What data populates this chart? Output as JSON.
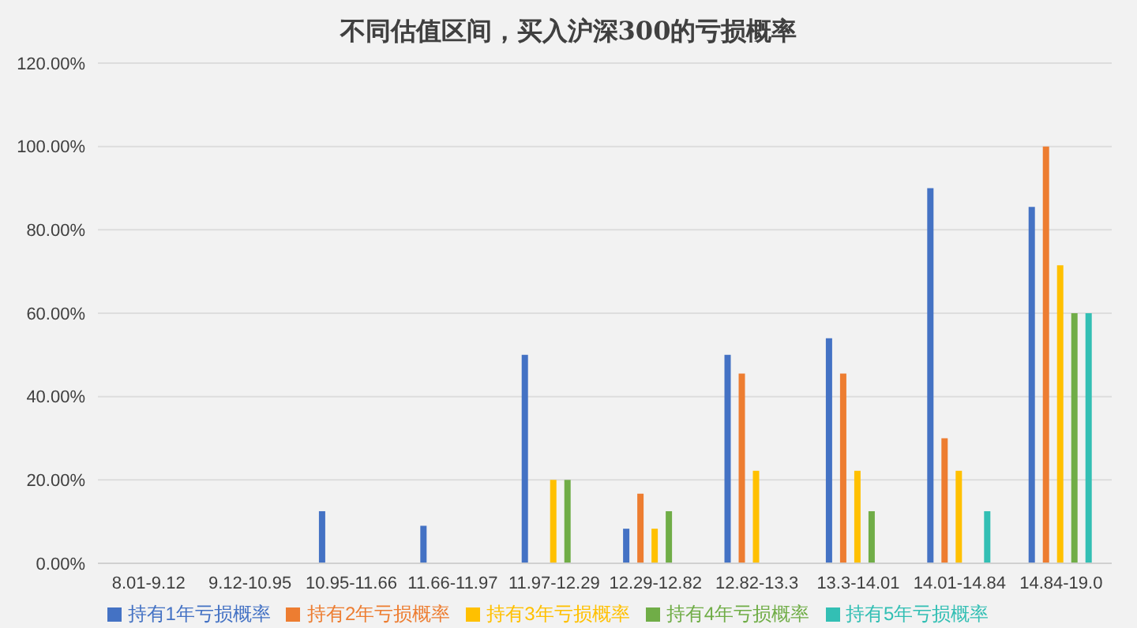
{
  "chart_data": {
    "type": "bar",
    "title": "不同估值区间，买入沪深300的亏损概率",
    "categories": [
      "8.01-9.12",
      "9.12-10.95",
      "10.95-11.66",
      "11.66-11.97",
      "11.97-12.29",
      "12.29-12.82",
      "12.82-13.3",
      "13.3-14.01",
      "14.01-14.84",
      "14.84-19.0"
    ],
    "series": [
      {
        "name": "持有1年亏损概率",
        "color": "#4472c4",
        "values": [
          null,
          null,
          12.5,
          9,
          50,
          8.3,
          50,
          54,
          90,
          85.5
        ]
      },
      {
        "name": "持有2年亏损概率",
        "color": "#ed7d31",
        "values": [
          null,
          null,
          null,
          null,
          null,
          16.7,
          45.5,
          45.5,
          30,
          100
        ]
      },
      {
        "name": "持有3年亏损概率",
        "color": "#ffc000",
        "values": [
          null,
          null,
          null,
          null,
          20,
          8.3,
          22.2,
          22.2,
          22.2,
          71.5
        ]
      },
      {
        "name": "持有4年亏损概率",
        "color": "#70ad47",
        "values": [
          null,
          null,
          null,
          null,
          20,
          12.5,
          null,
          12.5,
          null,
          60
        ]
      },
      {
        "name": "持有5年亏损概率",
        "color": "#33bfb4",
        "values": [
          null,
          null,
          null,
          null,
          null,
          null,
          null,
          null,
          12.5,
          60
        ]
      }
    ],
    "ylim": [
      0,
      120
    ],
    "yticks": [
      {
        "value": 0,
        "label": "0.00%"
      },
      {
        "value": 20,
        "label": "20.00%"
      },
      {
        "value": 40,
        "label": "40.00%"
      },
      {
        "value": 60,
        "label": "60.00%"
      },
      {
        "value": 80,
        "label": "80.00%"
      },
      {
        "value": 100,
        "label": "100.00%"
      },
      {
        "value": 120,
        "label": "120.00%"
      }
    ],
    "grid": "y",
    "legend": "bottom"
  }
}
